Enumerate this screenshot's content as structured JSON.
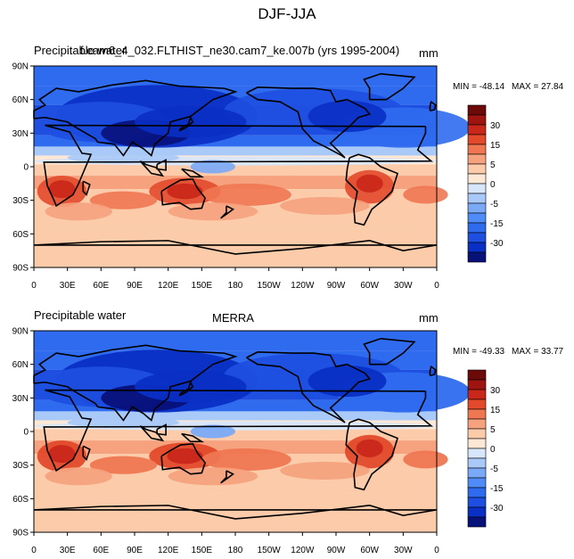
{
  "title": "DJF-JJA",
  "colors": {
    "scale": [
      "#08117a",
      "#0a2fc4",
      "#1e4fe0",
      "#2f6bef",
      "#4f8cf7",
      "#7aaaf7",
      "#a9c9f8",
      "#d7e6fb",
      "#fde8d5",
      "#fbcbaa",
      "#f6a27e",
      "#ef7752",
      "#e24a2b",
      "#c9271a",
      "#9e1410",
      "#6b0a08"
    ],
    "land": "#000000"
  },
  "colorbar": {
    "tick_labels": [
      "30",
      "15",
      "5",
      "0",
      "-5",
      "-15",
      "-30"
    ]
  },
  "panels": [
    {
      "left_title": "Precipitable water",
      "center_title": "f.cam6_4_032.FLTHIST_ne30.cam7_ke.007b (yrs 1995-2004)",
      "units": "mm",
      "min_label": "MIN = -48.14",
      "max_label": "MAX =  27.84"
    },
    {
      "left_title": "Precipitable water",
      "center_title": "MERRA",
      "units": "mm",
      "min_label": "MIN = -49.33",
      "max_label": "MAX =  33.77"
    }
  ],
  "axes": {
    "lat_labels": [
      "90N",
      "60N",
      "30N",
      "0",
      "30S",
      "60S",
      "90S"
    ],
    "lon_labels": [
      "0",
      "30E",
      "60E",
      "90E",
      "120E",
      "150E",
      "180",
      "150W",
      "120W",
      "90W",
      "60W",
      "30W",
      "0"
    ]
  }
}
